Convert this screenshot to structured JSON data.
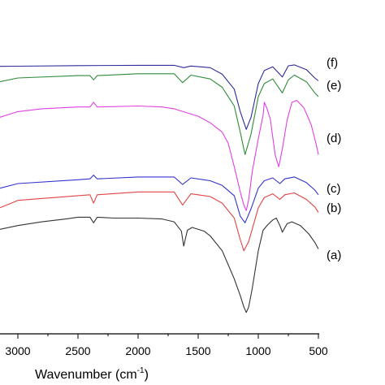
{
  "chart_data": {
    "type": "line",
    "title": "",
    "xlabel": "Wavenumber (cm",
    "xlabel_sup": "-1",
    "xlabel_close": ")",
    "ylabel": "",
    "xlim": [
      3300,
      500
    ],
    "x_reversed": true,
    "yaxis_visible": false,
    "grid": false,
    "xticks": [
      3000,
      2500,
      2000,
      1500,
      1000,
      500
    ],
    "xtick_labels": [
      "3000",
      "2500",
      "2000",
      "1500",
      "1000",
      "500"
    ],
    "series": [
      {
        "name": "(f)",
        "color": "#2b2b9a",
        "points": [
          [
            3300,
            0.76
          ],
          [
            3000,
            0.74
          ],
          [
            2500,
            0.68
          ],
          [
            2000,
            0.64
          ],
          [
            1700,
            0.64
          ],
          [
            1620,
            0.9
          ],
          [
            1560,
            0.72
          ],
          [
            1400,
            0.9
          ],
          [
            1300,
            1.6
          ],
          [
            1200,
            3.2
          ],
          [
            1150,
            5.6
          ],
          [
            1100,
            7.5
          ],
          [
            1060,
            6.2
          ],
          [
            1000,
            2.6
          ],
          [
            950,
            1.2
          ],
          [
            880,
            0.8
          ],
          [
            800,
            1.9
          ],
          [
            750,
            0.7
          ],
          [
            700,
            0.6
          ],
          [
            600,
            1.1
          ],
          [
            530,
            2.0
          ],
          [
            500,
            2.3
          ]
        ]
      },
      {
        "name": "(e)",
        "color": "#2e8b3a",
        "points": [
          [
            3300,
            2.4
          ],
          [
            3000,
            2.0
          ],
          [
            2500,
            1.75
          ],
          [
            2400,
            1.75
          ],
          [
            2370,
            2.2
          ],
          [
            2340,
            1.75
          ],
          [
            2000,
            1.55
          ],
          [
            1700,
            1.55
          ],
          [
            1630,
            2.5
          ],
          [
            1560,
            1.7
          ],
          [
            1400,
            2.1
          ],
          [
            1300,
            3.0
          ],
          [
            1200,
            5.0
          ],
          [
            1150,
            7.8
          ],
          [
            1110,
            10.2
          ],
          [
            1060,
            8.0
          ],
          [
            1000,
            4.0
          ],
          [
            950,
            2.6
          ],
          [
            880,
            2.1
          ],
          [
            800,
            3.6
          ],
          [
            750,
            2.2
          ],
          [
            700,
            1.7
          ],
          [
            600,
            2.4
          ],
          [
            530,
            3.6
          ],
          [
            500,
            4.0
          ]
        ]
      },
      {
        "name": "(d)",
        "color": "#e040e0",
        "points": [
          [
            3300,
            6.2
          ],
          [
            3000,
            5.6
          ],
          [
            2800,
            5.3
          ],
          [
            2500,
            5.1
          ],
          [
            2400,
            5.1
          ],
          [
            2370,
            4.6
          ],
          [
            2340,
            5.1
          ],
          [
            2000,
            5.0
          ],
          [
            1800,
            5.1
          ],
          [
            1700,
            5.3
          ],
          [
            1600,
            5.7
          ],
          [
            1500,
            6.1
          ],
          [
            1400,
            6.8
          ],
          [
            1300,
            7.8
          ],
          [
            1250,
            9.0
          ],
          [
            1200,
            11.5
          ],
          [
            1150,
            14.2
          ],
          [
            1120,
            15.6
          ],
          [
            1100,
            16.2
          ],
          [
            1080,
            15.0
          ],
          [
            1050,
            12.0
          ],
          [
            1000,
            8.5
          ],
          [
            960,
            6.0
          ],
          [
            950,
            4.6
          ],
          [
            930,
            5.2
          ],
          [
            900,
            6.4
          ],
          [
            860,
            10.2
          ],
          [
            830,
            11.5
          ],
          [
            800,
            9.6
          ],
          [
            760,
            6.5
          ],
          [
            720,
            4.6
          ],
          [
            680,
            4.4
          ],
          [
            620,
            5.2
          ],
          [
            560,
            7.0
          ],
          [
            520,
            9.0
          ],
          [
            500,
            10.2
          ]
        ]
      },
      {
        "name": "(c)",
        "color": "#3333cc",
        "points": [
          [
            3300,
            13.8
          ],
          [
            3000,
            13.3
          ],
          [
            2500,
            12.9
          ],
          [
            2400,
            12.8
          ],
          [
            2370,
            12.4
          ],
          [
            2340,
            12.8
          ],
          [
            2000,
            12.6
          ],
          [
            1700,
            12.6
          ],
          [
            1630,
            13.4
          ],
          [
            1560,
            12.7
          ],
          [
            1400,
            13.0
          ],
          [
            1300,
            13.5
          ],
          [
            1200,
            14.6
          ],
          [
            1150,
            16.8
          ],
          [
            1110,
            17.5
          ],
          [
            1060,
            16.0
          ],
          [
            1000,
            13.8
          ],
          [
            950,
            13.0
          ],
          [
            880,
            12.7
          ],
          [
            820,
            13.3
          ],
          [
            780,
            12.8
          ],
          [
            700,
            12.6
          ],
          [
            600,
            13.2
          ],
          [
            530,
            14.0
          ],
          [
            500,
            14.5
          ]
        ]
      },
      {
        "name": "(b)",
        "color": "#e04444",
        "points": [
          [
            3300,
            15.9
          ],
          [
            3000,
            15.1
          ],
          [
            2500,
            14.6
          ],
          [
            2400,
            14.5
          ],
          [
            2370,
            15.4
          ],
          [
            2340,
            14.5
          ],
          [
            2000,
            14.2
          ],
          [
            1700,
            14.2
          ],
          [
            1630,
            15.6
          ],
          [
            1560,
            14.4
          ],
          [
            1400,
            14.7
          ],
          [
            1300,
            15.4
          ],
          [
            1200,
            17.0
          ],
          [
            1150,
            19.3
          ],
          [
            1120,
            20.5
          ],
          [
            1080,
            19.5
          ],
          [
            1000,
            15.9
          ],
          [
            950,
            14.8
          ],
          [
            880,
            14.4
          ],
          [
            820,
            15.0
          ],
          [
            780,
            14.5
          ],
          [
            700,
            14.3
          ],
          [
            600,
            15.0
          ],
          [
            530,
            15.8
          ],
          [
            500,
            16.4
          ]
        ]
      },
      {
        "name": "(a)",
        "color": "#333333",
        "points": [
          [
            3300,
            18.2
          ],
          [
            3000,
            17.8
          ],
          [
            2800,
            17.4
          ],
          [
            2600,
            17.1
          ],
          [
            2500,
            16.9
          ],
          [
            2400,
            16.9
          ],
          [
            2370,
            17.5
          ],
          [
            2340,
            16.9
          ],
          [
            2200,
            17.0
          ],
          [
            2000,
            17.0
          ],
          [
            1800,
            17.1
          ],
          [
            1700,
            17.4
          ],
          [
            1640,
            18.4
          ],
          [
            1620,
            20.0
          ],
          [
            1590,
            18.3
          ],
          [
            1550,
            18.0
          ],
          [
            1450,
            18.4
          ],
          [
            1400,
            18.9
          ],
          [
            1300,
            20.5
          ],
          [
            1250,
            22.0
          ],
          [
            1200,
            23.5
          ],
          [
            1150,
            25.3
          ],
          [
            1120,
            26.5
          ],
          [
            1100,
            27.1
          ],
          [
            1080,
            26.5
          ],
          [
            1050,
            24.5
          ],
          [
            1000,
            20.5
          ],
          [
            960,
            18.3
          ],
          [
            920,
            17.7
          ],
          [
            880,
            17.2
          ],
          [
            850,
            17.0
          ],
          [
            820,
            17.8
          ],
          [
            800,
            18.5
          ],
          [
            760,
            17.6
          ],
          [
            720,
            17.4
          ],
          [
            650,
            17.8
          ],
          [
            580,
            18.7
          ],
          [
            530,
            19.6
          ],
          [
            500,
            20.3
          ]
        ]
      }
    ],
    "series_offsets_note": ""
  }
}
